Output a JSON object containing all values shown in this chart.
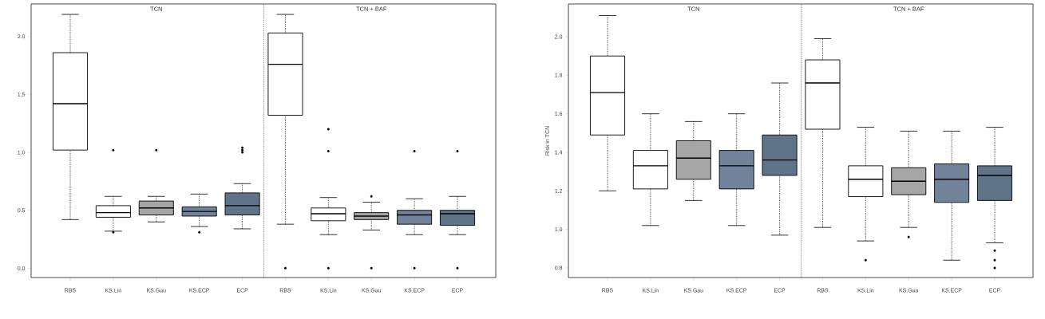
{
  "chart_data": [
    {
      "type": "box",
      "categories": [
        "RBS",
        "KS.Lin",
        "KS.Gau",
        "KS.ECP",
        "ECP",
        "RBS",
        "KS.Lin",
        "KS.Gau",
        "KS.ECP",
        "ECP"
      ],
      "colors": [
        "#ffffff",
        "#ffffff",
        "#a6a6a6",
        "#71839a",
        "#5f7489",
        "#ffffff",
        "#ffffff",
        "#a6a6a6",
        "#71839a",
        "#5f7489"
      ],
      "boxes": [
        {
          "low": 0.42,
          "q1": 1.02,
          "median": 1.42,
          "q3": 1.86,
          "high": 2.19
        },
        {
          "low": 0.32,
          "q1": 0.44,
          "median": 0.48,
          "q3": 0.54,
          "high": 0.62,
          "outliers": [
            1.02,
            0.31
          ]
        },
        {
          "low": 0.4,
          "q1": 0.46,
          "median": 0.52,
          "q3": 0.58,
          "high": 0.62,
          "outliers": [
            1.02
          ]
        },
        {
          "low": 0.36,
          "q1": 0.45,
          "median": 0.49,
          "q3": 0.53,
          "high": 0.64,
          "outliers": [
            0.31
          ]
        },
        {
          "low": 0.34,
          "q1": 0.46,
          "median": 0.54,
          "q3": 0.65,
          "high": 0.73,
          "outliers": [
            1.0,
            1.02,
            1.04
          ]
        },
        {
          "low": 0.38,
          "q1": 1.32,
          "median": 1.76,
          "q3": 2.03,
          "high": 2.19,
          "outliers": [
            0.0
          ]
        },
        {
          "low": 0.29,
          "q1": 0.41,
          "median": 0.47,
          "q3": 0.52,
          "high": 0.61,
          "outliers": [
            1.2,
            1.01,
            0.0
          ]
        },
        {
          "low": 0.33,
          "q1": 0.42,
          "median": 0.45,
          "q3": 0.48,
          "high": 0.57,
          "outliers": [
            0.62,
            0.0
          ]
        },
        {
          "low": 0.29,
          "q1": 0.38,
          "median": 0.46,
          "q3": 0.5,
          "high": 0.6,
          "outliers": [
            1.01,
            0.0
          ]
        },
        {
          "low": 0.29,
          "q1": 0.37,
          "median": 0.47,
          "q3": 0.5,
          "high": 0.62,
          "outliers": [
            1.01,
            0.0
          ]
        }
      ],
      "ylim": [
        -0.08,
        2.28
      ],
      "yticks": [
        {
          "value": 0,
          "label": "0.0"
        },
        0.5,
        {
          "value": 1,
          "label": "1.0"
        },
        1.5,
        {
          "value": 2,
          "label": "2.0"
        }
      ],
      "annotations": [
        "TCN",
        "TCN + BAF"
      ]
    },
    {
      "type": "box",
      "ylabel": "Risk in TCN",
      "categories": [
        "RBS",
        "KS.Lin",
        "KS.Gau",
        "KS.ECP",
        "ECP",
        "RBS",
        "KS.Lin",
        "KS.Gau",
        "KS.ECP",
        "ECP"
      ],
      "colors": [
        "#ffffff",
        "#ffffff",
        "#a6a6a6",
        "#71839a",
        "#5f7489",
        "#ffffff",
        "#ffffff",
        "#a6a6a6",
        "#71839a",
        "#5f7489"
      ],
      "boxes": [
        {
          "low": 1.2,
          "q1": 1.49,
          "median": 1.71,
          "q3": 1.9,
          "high": 2.11
        },
        {
          "low": 1.02,
          "q1": 1.21,
          "median": 1.33,
          "q3": 1.41,
          "high": 1.6
        },
        {
          "low": 1.15,
          "q1": 1.26,
          "median": 1.37,
          "q3": 1.46,
          "high": 1.56
        },
        {
          "low": 1.02,
          "q1": 1.21,
          "median": 1.33,
          "q3": 1.41,
          "high": 1.6
        },
        {
          "low": 0.97,
          "q1": 1.28,
          "median": 1.36,
          "q3": 1.49,
          "high": 1.76
        },
        {
          "low": 1.01,
          "q1": 1.52,
          "median": 1.76,
          "q3": 1.88,
          "high": 1.99
        },
        {
          "low": 0.94,
          "q1": 1.17,
          "median": 1.26,
          "q3": 1.33,
          "high": 1.53,
          "outliers": [
            0.84
          ]
        },
        {
          "low": 1.01,
          "q1": 1.18,
          "median": 1.25,
          "q3": 1.32,
          "high": 1.51,
          "outliers": [
            0.96
          ]
        },
        {
          "low": 0.84,
          "q1": 1.14,
          "median": 1.26,
          "q3": 1.34,
          "high": 1.51
        },
        {
          "low": 0.93,
          "q1": 1.15,
          "median": 1.28,
          "q3": 1.33,
          "high": 1.53,
          "outliers": [
            0.89,
            0.84,
            0.8
          ]
        }
      ],
      "ylim": [
        0.75,
        2.17
      ],
      "yticks": [
        0.8,
        {
          "value": 1,
          "label": "1.0"
        },
        1.2,
        1.4,
        1.6,
        1.8,
        {
          "value": 2,
          "label": "2.0"
        }
      ],
      "annotations": [
        "TCN",
        "TCN + BAF"
      ]
    }
  ]
}
